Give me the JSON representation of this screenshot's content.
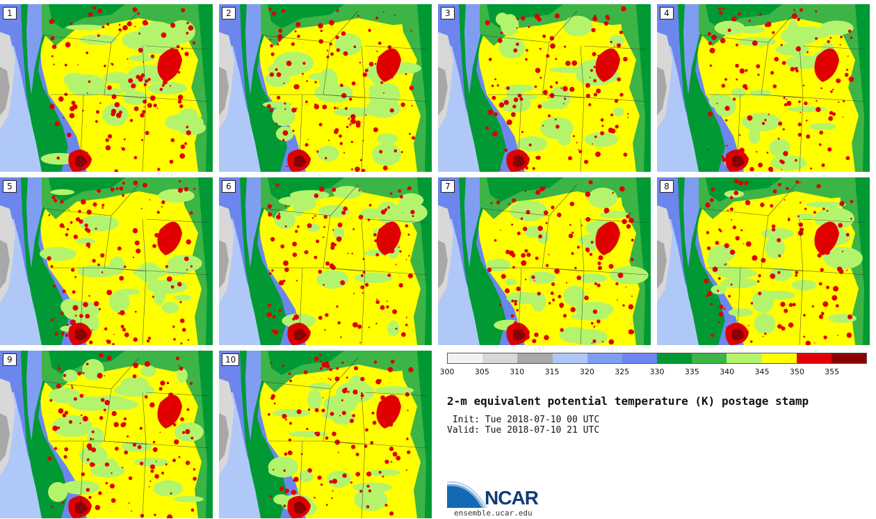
{
  "title": "2-m equivalent potential temperature (K) postage stamp",
  "init": " Init: Tue 2018-07-10 00 UTC",
  "valid": "Valid: Tue 2018-07-10 21 UTC",
  "site": "ensemble.ucar.edu",
  "logo_text": "NCAR",
  "panels": [
    "1",
    "2",
    "3",
    "4",
    "5",
    "6",
    "7",
    "8",
    "9",
    "10"
  ],
  "colorbar": {
    "ticks": [
      "300",
      "305",
      "310",
      "315",
      "320",
      "325",
      "330",
      "335",
      "340",
      "345",
      "350",
      "355"
    ],
    "colors": [
      "#f2f2f2",
      "#d8d8d8",
      "#a8a8a8",
      "#b0c8f8",
      "#7f9ef2",
      "#6c86ee",
      "#009933",
      "#3cb446",
      "#b4f46c",
      "#ffff00",
      "#e00000",
      "#8b0000"
    ]
  }
}
